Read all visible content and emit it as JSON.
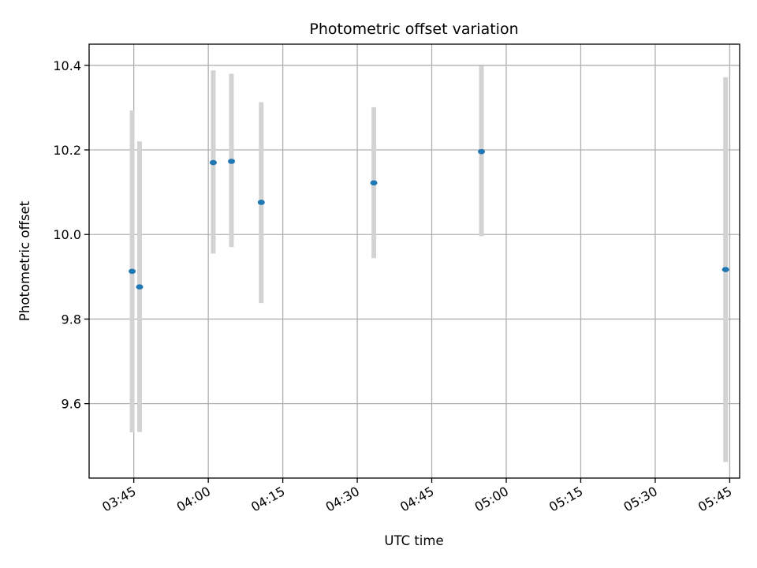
{
  "chart_data": {
    "type": "scatter",
    "title": "Photometric offset variation",
    "xlabel": "UTC time",
    "ylabel": "Photometric offset",
    "x_ticks": [
      "03:45",
      "04:00",
      "04:15",
      "04:30",
      "04:45",
      "05:00",
      "05:15",
      "05:30",
      "05:45"
    ],
    "y_ticks": [
      "9.6",
      "9.8",
      "10.0",
      "10.2",
      "10.4"
    ],
    "xlim": [
      "03:36:00",
      "05:47:00"
    ],
    "ylim": [
      9.424,
      10.45
    ],
    "grid": true,
    "point_color": "#1f77b4",
    "errorbar_color": "#d3d3d3",
    "points": [
      {
        "x": "03:44:40",
        "y": 9.913,
        "ylow": 9.532,
        "yhigh": 10.293
      },
      {
        "x": "03:46:10",
        "y": 9.876,
        "ylow": 9.533,
        "yhigh": 10.22
      },
      {
        "x": "04:01:00",
        "y": 10.17,
        "ylow": 9.955,
        "yhigh": 10.388
      },
      {
        "x": "04:04:40",
        "y": 10.173,
        "ylow": 9.97,
        "yhigh": 10.38
      },
      {
        "x": "04:10:40",
        "y": 10.076,
        "ylow": 9.838,
        "yhigh": 10.313
      },
      {
        "x": "04:33:20",
        "y": 10.122,
        "ylow": 9.944,
        "yhigh": 10.301
      },
      {
        "x": "04:55:00",
        "y": 10.196,
        "ylow": 9.996,
        "yhigh": 10.399
      },
      {
        "x": "05:44:10",
        "y": 9.917,
        "ylow": 9.462,
        "yhigh": 10.372
      }
    ]
  }
}
